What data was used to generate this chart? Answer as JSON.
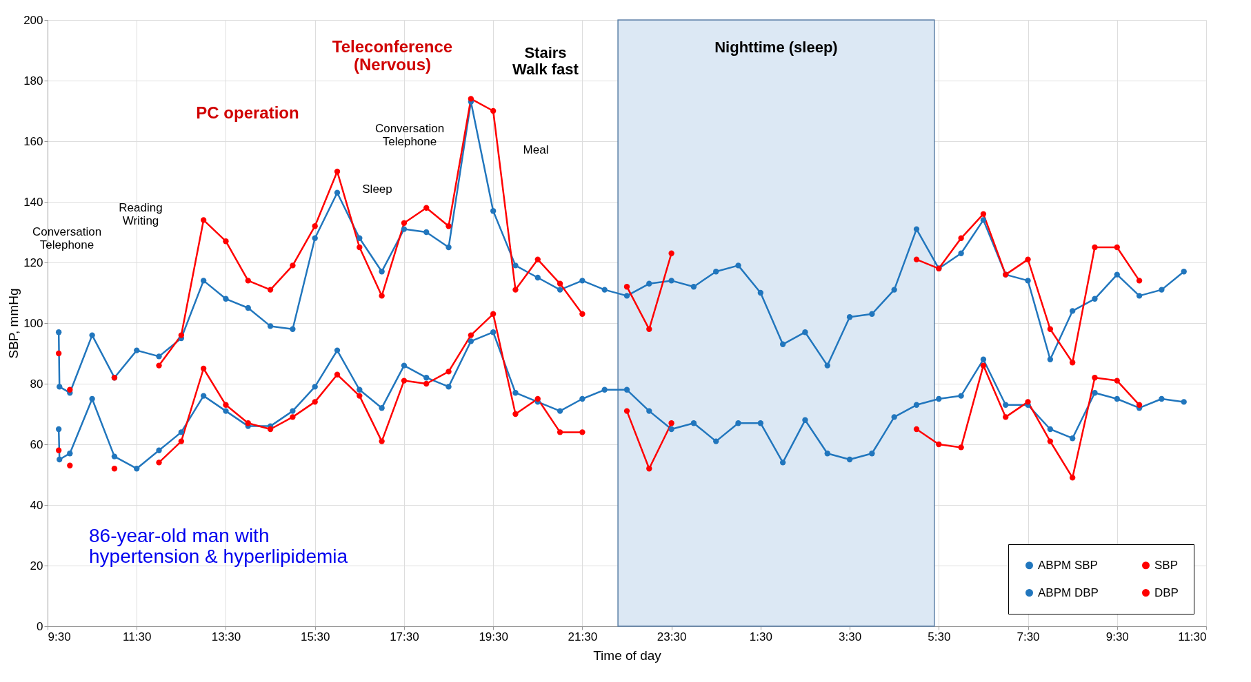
{
  "chart_data": {
    "type": "line",
    "xlabel": "Time of day",
    "ylabel": "SBP, mmHg",
    "xlim": [
      "--01-01T09:30",
      "--01-02T11:30"
    ],
    "xticks": [
      {
        "value": "--01-01T09:30",
        "label": "9:30"
      },
      {
        "value": "--01-01T11:30",
        "label": "11:30"
      },
      {
        "value": "--01-01T13:30",
        "label": "13:30"
      },
      {
        "value": "--01-01T15:30",
        "label": "15:30"
      },
      {
        "value": "--01-01T17:30",
        "label": "17:30"
      },
      {
        "value": "--01-01T19:30",
        "label": "19:30"
      },
      {
        "value": "--01-01T21:30",
        "label": "21:30"
      },
      {
        "value": "--01-01T23:30",
        "label": "23:30"
      },
      {
        "value": "--01-02T01:30",
        "label": "1:30"
      },
      {
        "value": "--01-02T03:30",
        "label": "3:30"
      },
      {
        "value": "--01-02T05:30",
        "label": "5:30"
      },
      {
        "value": "--01-02T07:30",
        "label": "7:30"
      },
      {
        "value": "--01-02T09:30",
        "label": "9:30"
      },
      {
        "value": "--01-02T11:30",
        "label": "11:30"
      }
    ],
    "ylim": [
      0,
      200
    ],
    "yticks": [
      0,
      20,
      40,
      60,
      80,
      100,
      120,
      140,
      160,
      180,
      200
    ],
    "grid": true,
    "legend": "bottom right",
    "marker": "circle",
    "line_style": "solid",
    "series": [
      {
        "name": "ABPM SBP",
        "color": "#2176bd",
        "x": [
          "--01-01T09:45",
          "--01-01T09:46",
          "--01-01T10:00",
          "--01-01T10:30",
          "--01-01T11:00",
          "--01-01T11:30",
          "--01-01T12:00",
          "--01-01T12:30",
          "--01-01T13:00",
          "--01-01T13:30",
          "--01-01T14:00",
          "--01-01T14:30",
          "--01-01T15:00",
          "--01-01T15:30",
          "--01-01T16:00",
          "--01-01T16:30",
          "--01-01T17:00",
          "--01-01T17:30",
          "--01-01T18:00",
          "--01-01T18:30",
          "--01-01T19:00",
          "--01-01T19:30",
          "--01-01T20:00",
          "--01-01T20:30",
          "--01-01T21:00",
          "--01-01T21:30",
          "--01-01T22:00",
          "--01-01T22:30",
          "--01-01T23:00",
          "--01-01T23:30",
          "--01-02T00:00",
          "--01-02T00:30",
          "--01-02T01:00",
          "--01-02T01:30",
          "--01-02T02:00",
          "--01-02T02:30",
          "--01-02T03:00",
          "--01-02T03:30",
          "--01-02T04:00",
          "--01-02T04:30",
          "--01-02T05:00",
          "--01-02T05:30",
          "--01-02T06:00",
          "--01-02T06:30",
          "--01-02T07:00",
          "--01-02T07:30",
          "--01-02T08:00",
          "--01-02T08:30",
          "--01-02T09:00",
          "--01-02T09:30",
          "--01-02T10:00",
          "--01-02T10:30",
          "--01-02T11:00"
        ],
        "values": [
          97,
          79,
          77,
          96,
          82,
          91,
          89,
          95,
          114,
          108,
          105,
          99,
          98,
          128,
          143,
          128,
          117,
          131,
          130,
          125,
          173,
          137,
          119,
          115,
          111,
          114,
          111,
          109,
          113,
          114,
          112,
          117,
          119,
          110,
          93,
          97,
          86,
          102,
          103,
          111,
          131,
          118,
          123,
          134,
          116,
          114,
          88,
          104,
          108,
          116,
          109,
          111,
          117
        ]
      },
      {
        "name": "ABPM DBP",
        "color": "#2176bd",
        "x": [
          "--01-01T09:45",
          "--01-01T09:46",
          "--01-01T10:00",
          "--01-01T10:30",
          "--01-01T11:00",
          "--01-01T11:30",
          "--01-01T12:00",
          "--01-01T12:30",
          "--01-01T13:00",
          "--01-01T13:30",
          "--01-01T14:00",
          "--01-01T14:30",
          "--01-01T15:00",
          "--01-01T15:30",
          "--01-01T16:00",
          "--01-01T16:30",
          "--01-01T17:00",
          "--01-01T17:30",
          "--01-01T18:00",
          "--01-01T18:30",
          "--01-01T19:00",
          "--01-01T19:30",
          "--01-01T20:00",
          "--01-01T20:30",
          "--01-01T21:00",
          "--01-01T21:30",
          "--01-01T22:00",
          "--01-01T22:30",
          "--01-01T23:00",
          "--01-01T23:30",
          "--01-02T00:00",
          "--01-02T00:30",
          "--01-02T01:00",
          "--01-02T01:30",
          "--01-02T02:00",
          "--01-02T02:30",
          "--01-02T03:00",
          "--01-02T03:30",
          "--01-02T04:00",
          "--01-02T04:30",
          "--01-02T05:00",
          "--01-02T05:30",
          "--01-02T06:00",
          "--01-02T06:30",
          "--01-02T07:00",
          "--01-02T07:30",
          "--01-02T08:00",
          "--01-02T08:30",
          "--01-02T09:00",
          "--01-02T09:30",
          "--01-02T10:00",
          "--01-02T10:30",
          "--01-02T11:00"
        ],
        "values": [
          65,
          55,
          57,
          75,
          56,
          52,
          58,
          64,
          76,
          71,
          66,
          66,
          71,
          79,
          91,
          78,
          72,
          86,
          82,
          79,
          94,
          97,
          77,
          74,
          71,
          75,
          78,
          78,
          71,
          65,
          67,
          61,
          67,
          67,
          54,
          68,
          57,
          55,
          57,
          69,
          73,
          75,
          76,
          88,
          73,
          73,
          65,
          62,
          77,
          75,
          72,
          75,
          74
        ]
      },
      {
        "name": "SBP",
        "color": "#ff0000",
        "x": [
          "--01-01T09:45",
          "--01-01T09:54",
          "--01-01T10:00",
          "--01-01T10:30",
          "--01-01T11:00",
          "--01-01T11:30",
          "--01-01T12:00",
          "--01-01T12:30",
          "--01-01T13:00",
          "--01-01T13:30",
          "--01-01T14:00",
          "--01-01T14:30",
          "--01-01T15:00",
          "--01-01T15:30",
          "--01-01T16:00",
          "--01-01T16:30",
          "--01-01T17:00",
          "--01-01T17:30",
          "--01-01T18:00",
          "--01-01T18:30",
          "--01-01T19:00",
          "--01-01T19:30",
          "--01-01T20:00",
          "--01-01T20:30",
          "--01-01T21:00",
          "--01-01T21:30",
          "--01-01T22:00",
          "--01-01T22:30",
          "--01-01T23:00",
          "--01-01T23:30",
          "--01-02T02:00",
          "--01-02T05:00",
          "--01-02T05:30",
          "--01-02T06:00",
          "--01-02T06:30",
          "--01-02T07:00",
          "--01-02T07:30",
          "--01-02T08:00",
          "--01-02T08:30",
          "--01-02T09:00",
          "--01-02T09:30",
          "--01-02T10:00"
        ],
        "values": [
          90,
          null,
          78,
          null,
          82,
          null,
          86,
          96,
          134,
          127,
          114,
          111,
          119,
          132,
          150,
          125,
          109,
          133,
          138,
          132,
          174,
          170,
          111,
          121,
          113,
          103,
          null,
          112,
          98,
          123,
          null,
          121,
          118,
          128,
          136,
          116,
          121,
          98,
          87,
          125,
          125,
          114
        ]
      },
      {
        "name": "DBP",
        "color": "#ff0000",
        "x": [
          "--01-01T09:45",
          "--01-01T09:54",
          "--01-01T10:00",
          "--01-01T10:30",
          "--01-01T11:00",
          "--01-01T11:30",
          "--01-01T12:00",
          "--01-01T12:30",
          "--01-01T13:00",
          "--01-01T13:30",
          "--01-01T14:00",
          "--01-01T14:30",
          "--01-01T15:00",
          "--01-01T15:30",
          "--01-01T16:00",
          "--01-01T16:30",
          "--01-01T17:00",
          "--01-01T17:30",
          "--01-01T18:00",
          "--01-01T18:30",
          "--01-01T19:00",
          "--01-01T19:30",
          "--01-01T20:00",
          "--01-01T20:30",
          "--01-01T21:00",
          "--01-01T21:30",
          "--01-01T22:00",
          "--01-01T22:30",
          "--01-01T23:00",
          "--01-01T23:30",
          "--01-02T02:00",
          "--01-02T05:00",
          "--01-02T05:30",
          "--01-02T06:00",
          "--01-02T06:30",
          "--01-02T07:00",
          "--01-02T07:30",
          "--01-02T08:00",
          "--01-02T08:30",
          "--01-02T09:00",
          "--01-02T09:30",
          "--01-02T10:00"
        ],
        "values": [
          58,
          null,
          53,
          null,
          52,
          null,
          54,
          61,
          85,
          73,
          67,
          65,
          69,
          74,
          83,
          76,
          61,
          81,
          80,
          84,
          96,
          103,
          70,
          75,
          64,
          64,
          null,
          71,
          52,
          67,
          null,
          65,
          60,
          59,
          86,
          69,
          74,
          61,
          49,
          82,
          81,
          73
        ]
      }
    ],
    "bands": [
      {
        "axis": "x",
        "from": "--01-01T22:18",
        "to": "--01-02T05:24",
        "label": "Nighttime (sleep)",
        "color": "#dce8f4"
      }
    ],
    "annotations": [
      "Conversation\nTelephone",
      "Reading\nWriting",
      "PC operation",
      "Sleep",
      "Conversation\nTelephone",
      "Teleconference\n(Nervous)",
      "Stairs\nWalk fast",
      "Meal",
      "86-year-old man with\nhypertension & hyperlipidemia"
    ]
  }
}
